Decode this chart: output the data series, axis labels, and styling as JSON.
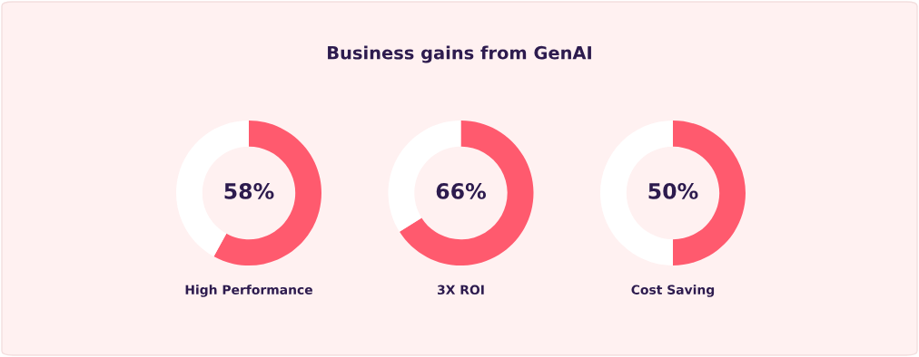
{
  "chart_data": [
    {
      "type": "other",
      "title": "Business gains from GenAI"
    },
    {
      "type": "donut",
      "xlabel": "High Performance",
      "categories": [
        null,
        null
      ],
      "values": [
        58,
        42
      ],
      "colors": [
        "#ff5a6e",
        "#ffffff"
      ],
      "annotations": [
        "58%"
      ]
    },
    {
      "type": "donut",
      "xlabel": "3X ROI",
      "categories": [
        null,
        null
      ],
      "values": [
        66,
        34
      ],
      "colors": [
        "#ff5a6e",
        "#ffffff"
      ],
      "annotations": [
        "66%"
      ]
    },
    {
      "type": "donut",
      "xlabel": "Cost Saving",
      "categories": [
        null,
        null
      ],
      "values": [
        50,
        50
      ],
      "colors": [
        "#ff5a6e",
        "#ffffff"
      ],
      "annotations": [
        "50%"
      ]
    }
  ]
}
